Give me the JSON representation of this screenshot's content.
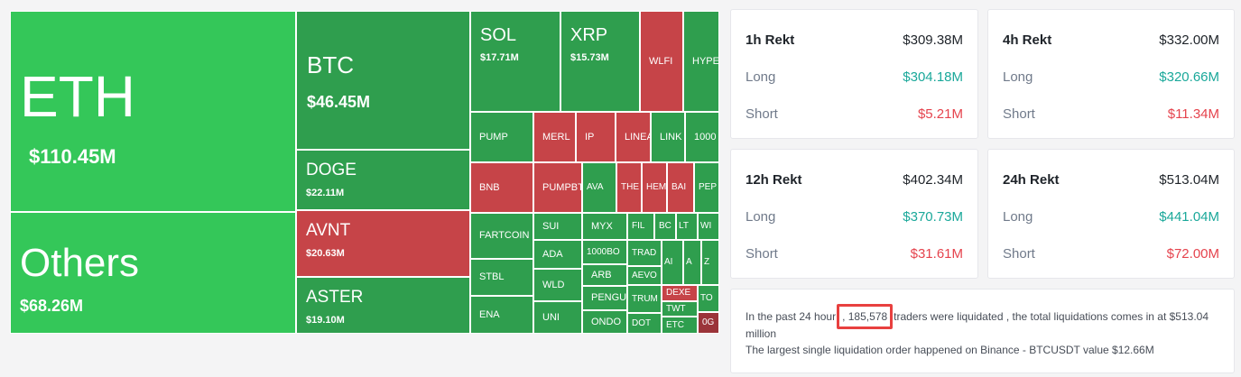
{
  "colors": {
    "bright_green": "#34c759",
    "green": "#2f9e4e",
    "red": "#c64448",
    "dark_red": "#9b3439",
    "long": "#1aa89a",
    "short": "#e5434d"
  },
  "treemap": [
    {
      "sym": "ETH",
      "val": "$110.45M",
      "color": "bright_green",
      "size": "xl"
    },
    {
      "sym": "Others",
      "val": "$68.26M",
      "color": "bright_green",
      "size": "others"
    },
    {
      "sym": "BTC",
      "val": "$46.45M",
      "color": "green",
      "size": "lg"
    },
    {
      "sym": "DOGE",
      "val": "$22.11M",
      "color": "green",
      "size": "ms"
    },
    {
      "sym": "AVNT",
      "val": "$20.63M",
      "color": "red",
      "size": "ms"
    },
    {
      "sym": "ASTER",
      "val": "$19.10M",
      "color": "green",
      "size": "ms"
    },
    {
      "sym": "SOL",
      "val": "$17.71M",
      "color": "green",
      "size": "md"
    },
    {
      "sym": "XRP",
      "val": "$15.73M",
      "color": "green",
      "size": "md"
    },
    {
      "sym": "WLFI",
      "color": "red",
      "size": "sm"
    },
    {
      "sym": "HYPE",
      "color": "green",
      "size": "sm"
    },
    {
      "sym": "PUMP",
      "color": "green",
      "size": "sm"
    },
    {
      "sym": "MERL",
      "color": "red",
      "size": "sm"
    },
    {
      "sym": "IP",
      "color": "red",
      "size": "sm"
    },
    {
      "sym": "LINEA",
      "color": "red",
      "size": "sm"
    },
    {
      "sym": "LINK",
      "color": "green",
      "size": "sm"
    },
    {
      "sym": "1000",
      "color": "green",
      "size": "sm"
    },
    {
      "sym": "BNB",
      "color": "red",
      "size": "sm"
    },
    {
      "sym": "PUMPBTC",
      "color": "red",
      "size": "sm"
    },
    {
      "sym": "AVA",
      "color": "green",
      "size": "xs"
    },
    {
      "sym": "THE",
      "color": "red",
      "size": "xs"
    },
    {
      "sym": "HEM",
      "color": "red",
      "size": "xs"
    },
    {
      "sym": "BAI",
      "color": "red",
      "size": "xs"
    },
    {
      "sym": "PEP",
      "color": "green",
      "size": "xs"
    },
    {
      "sym": "FARTCOIN",
      "color": "green",
      "size": "sm"
    },
    {
      "sym": "SUI",
      "color": "green",
      "size": "sm"
    },
    {
      "sym": "MYX",
      "color": "green",
      "size": "sm"
    },
    {
      "sym": "FIL",
      "color": "green",
      "size": "xs"
    },
    {
      "sym": "BC",
      "color": "green",
      "size": "xs"
    },
    {
      "sym": "LT",
      "color": "green",
      "size": "xxs"
    },
    {
      "sym": "WI",
      "color": "green",
      "size": "xxs"
    },
    {
      "sym": "STBL",
      "color": "green",
      "size": "sm"
    },
    {
      "sym": "ADA",
      "color": "green",
      "size": "sm"
    },
    {
      "sym": "1000BO",
      "color": "green",
      "size": "xs"
    },
    {
      "sym": "TRAD",
      "color": "green",
      "size": "xs"
    },
    {
      "sym": "AI",
      "color": "green",
      "size": "xxs"
    },
    {
      "sym": "A",
      "color": "green",
      "size": "xxs"
    },
    {
      "sym": "Z",
      "color": "green",
      "size": "xxs"
    },
    {
      "sym": "WLD",
      "color": "green",
      "size": "sm"
    },
    {
      "sym": "ARB",
      "color": "green",
      "size": "sm"
    },
    {
      "sym": "AEVO",
      "color": "green",
      "size": "xs"
    },
    {
      "sym": "DEXE",
      "color": "red",
      "size": "xs"
    },
    {
      "sym": "TO",
      "color": "green",
      "size": "xxs"
    },
    {
      "sym": "ENA",
      "color": "green",
      "size": "sm"
    },
    {
      "sym": "PENGU",
      "color": "green",
      "size": "sm"
    },
    {
      "sym": "TRUM",
      "color": "green",
      "size": "xs"
    },
    {
      "sym": "TWT",
      "color": "green",
      "size": "xs"
    },
    {
      "sym": "UNI",
      "color": "green",
      "size": "sm"
    },
    {
      "sym": "ONDO",
      "color": "green",
      "size": "sm"
    },
    {
      "sym": "DOT",
      "color": "green",
      "size": "xs"
    },
    {
      "sym": "ETC",
      "color": "green",
      "size": "xs"
    },
    {
      "sym": "0G",
      "color": "dark_red",
      "size": "xs"
    }
  ],
  "cards": [
    {
      "title": "1h Rekt",
      "total": "$309.38M",
      "long_label": "Long",
      "long": "$304.18M",
      "short_label": "Short",
      "short": "$5.21M"
    },
    {
      "title": "4h Rekt",
      "total": "$332.00M",
      "long_label": "Long",
      "long": "$320.66M",
      "short_label": "Short",
      "short": "$11.34M"
    },
    {
      "title": "12h Rekt",
      "total": "$402.34M",
      "long_label": "Long",
      "long": "$370.73M",
      "short_label": "Short",
      "short": "$31.61M"
    },
    {
      "title": "24h Rekt",
      "total": "$513.04M",
      "long_label": "Long",
      "long": "$441.04M",
      "short_label": "Short",
      "short": "$72.00M"
    }
  ],
  "summary": {
    "line1_prefix": "In the past 24 hour",
    "traders_count": ", 185,578",
    "line1_suffix": "traders were liquidated , the total liquidations comes in at $513.04 million",
    "line2": "The largest single liquidation order happened on Binance - BTCUSDT value $12.66M"
  }
}
